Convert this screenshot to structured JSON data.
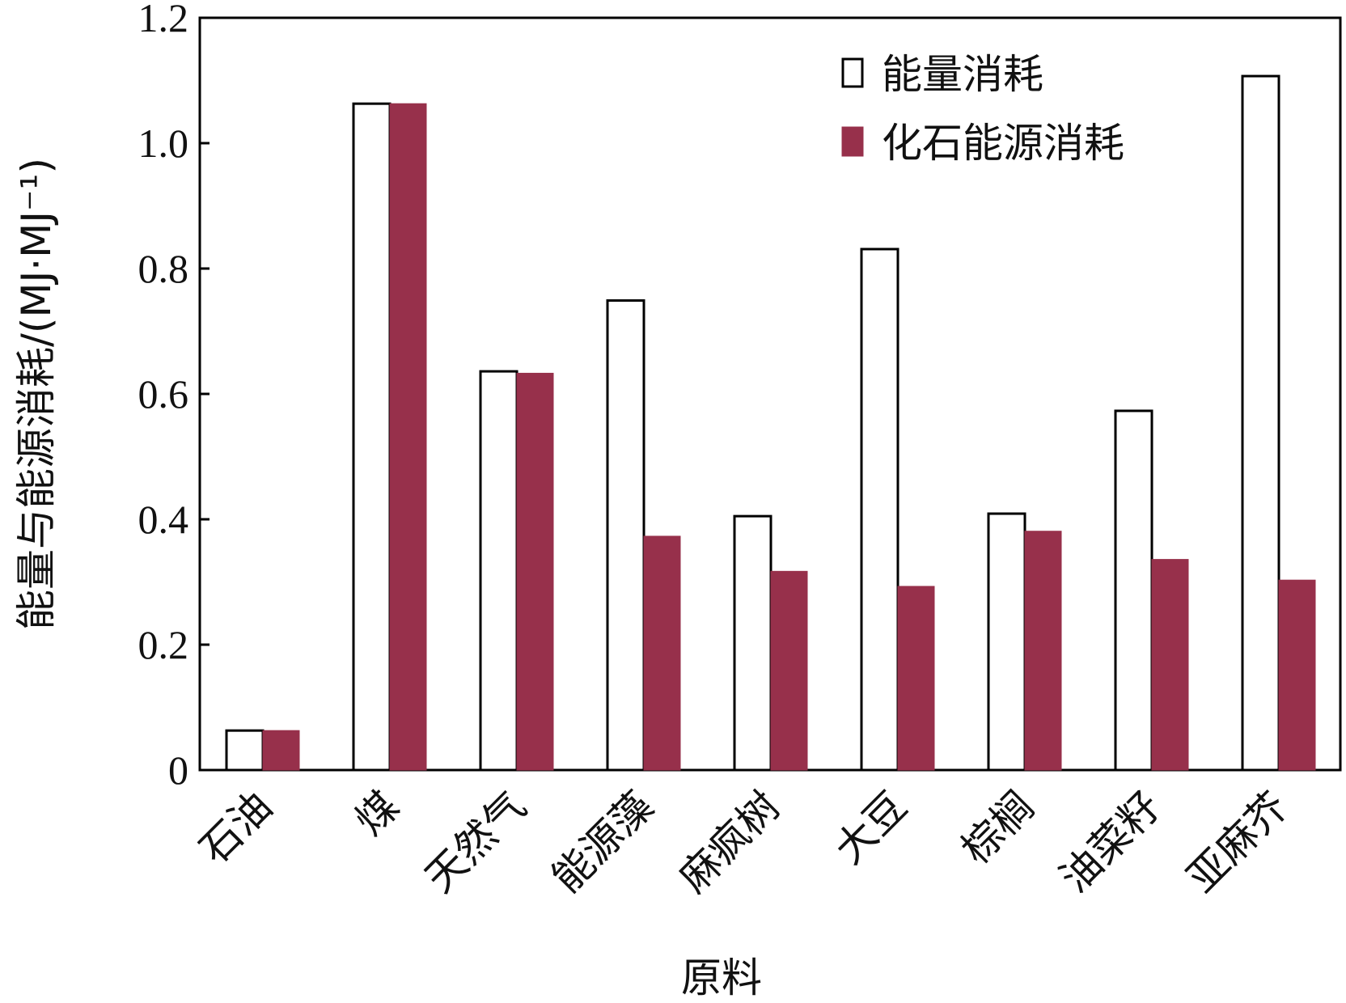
{
  "chart_data": {
    "type": "bar",
    "xlabel": "原料",
    "ylabel": "能量与能源消耗/(MJ·MJ⁻¹)",
    "ylim": [
      0,
      1.2
    ],
    "yticks": [
      0,
      0.2,
      0.4,
      0.6,
      0.8,
      1.0,
      1.2
    ],
    "ytick_labels": [
      "0",
      "0.2",
      "0.4",
      "0.6",
      "0.8",
      "1.0",
      "1.2"
    ],
    "grid": false,
    "legend_position": "top-right",
    "categories": [
      "石油",
      "煤",
      "天然气",
      "能源藻",
      "麻疯树",
      "大豆",
      "棕榈",
      "油菜籽",
      "亚麻芥"
    ],
    "series": [
      {
        "name": "能量消耗",
        "color": "#ffffff",
        "edge_color": "#000000",
        "values": [
          0.063,
          1.063,
          0.636,
          0.749,
          0.405,
          0.831,
          0.409,
          0.573,
          1.107
        ]
      },
      {
        "name": "化石能源消耗",
        "color": "#97304b",
        "edge_color": "#97304b",
        "values": [
          0.063,
          1.063,
          0.633,
          0.373,
          0.317,
          0.293,
          0.381,
          0.336,
          0.303
        ]
      }
    ]
  }
}
